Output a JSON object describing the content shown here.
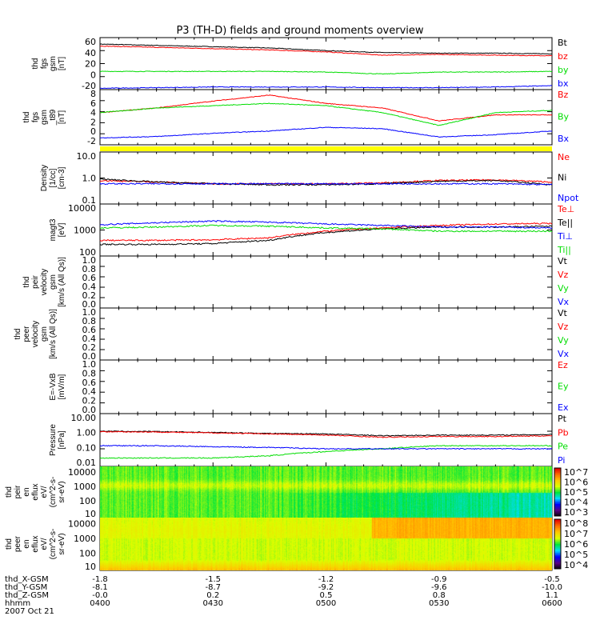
{
  "chart_data": {
    "type": "line",
    "title": "P3 (TH-D) fields and ground moments overview",
    "x_hours": [
      4.0,
      4.25,
      4.5,
      4.75,
      5.0,
      5.25,
      5.5,
      5.75,
      6.0
    ],
    "panels": [
      {
        "ylabel": [
          "thd",
          "fgs",
          "gsm",
          "[nT]"
        ],
        "scale": "linear",
        "ylim": [
          -20,
          60
        ],
        "yticks": [
          60,
          40,
          20,
          0,
          -20
        ],
        "series": [
          {
            "name": "Bt",
            "color": "#000000",
            "values": [
              50,
              48,
              46,
              44,
              40,
              37,
              36,
              36,
              35
            ]
          },
          {
            "name": "bz",
            "color": "#ff0000",
            "values": [
              47,
              45,
              43,
              41,
              38,
              33,
              34,
              33,
              32
            ]
          },
          {
            "name": "by",
            "color": "#00dd00",
            "values": [
              8,
              8,
              8,
              8,
              7,
              4,
              7,
              7,
              8
            ]
          },
          {
            "name": "bx",
            "color": "#0000ff",
            "values": [
              -18,
              -17,
              -16,
              -16,
              -16,
              -17,
              -17,
              -16,
              -14
            ]
          }
        ]
      },
      {
        "ylabel": [
          "thd",
          "fgs",
          "gsm",
          "_t89",
          "[nT]"
        ],
        "scale": "linear",
        "ylim": [
          -3,
          9
        ],
        "yticks": [
          8,
          6,
          4,
          2,
          0,
          -2
        ],
        "series": [
          {
            "name": "Bz",
            "color": "#ff0000",
            "values": [
              4,
              5,
              6.5,
              7.8,
              6,
              5,
              2.2,
              3.5,
              3.5
            ]
          },
          {
            "name": "By",
            "color": "#00dd00",
            "values": [
              4,
              5,
              5.5,
              6,
              5.5,
              4,
              1.2,
              4,
              4.5
            ]
          },
          {
            "name": "Bx",
            "color": "#0000ff",
            "values": [
              -1.5,
              -1.2,
              -0.5,
              0,
              0.8,
              0.5,
              -1.3,
              -0.8,
              0
            ]
          }
        ]
      },
      {
        "ylabel": [
          "Density",
          "[1/cc]",
          "[cm-3]"
        ],
        "scale": "log",
        "ylim": [
          0.1,
          10
        ],
        "yticks": [
          "10.0",
          "1.0",
          "0.1"
        ],
        "series": [
          {
            "name": "Ne",
            "color": "#ff0000",
            "values": [
              0.8,
              0.7,
              0.6,
              0.6,
              0.6,
              0.65,
              0.8,
              0.85,
              0.7
            ]
          },
          {
            "name": "Ni",
            "color": "#000000",
            "values": [
              0.9,
              0.7,
              0.6,
              0.55,
              0.55,
              0.6,
              0.75,
              0.8,
              0.55
            ]
          },
          {
            "name": "Npot",
            "color": "#0000ff",
            "values": [
              0.6,
              0.6,
              0.6,
              0.6,
              0.6,
              0.6,
              0.6,
              0.6,
              0.55
            ]
          }
        ]
      },
      {
        "ylabel": [
          "magt3",
          "[eV]"
        ],
        "scale": "log",
        "ylim": [
          100,
          10000
        ],
        "yticks": [
          "10000",
          "1000",
          "100"
        ],
        "series": [
          {
            "name": "Te⊥",
            "color": "#ff0000",
            "values": [
              400,
              400,
              420,
              500,
              900,
              1200,
              1500,
              1700,
              1800
            ]
          },
          {
            "name": "Te||",
            "color": "#000000",
            "values": [
              280,
              280,
              300,
              400,
              800,
              1100,
              1300,
              1300,
              1400
            ]
          },
          {
            "name": "Ti⊥",
            "color": "#0000ff",
            "values": [
              1600,
              1900,
              2200,
              2000,
              1700,
              1500,
              1300,
              1300,
              1200
            ]
          },
          {
            "name": "Ti||",
            "color": "#00dd00",
            "values": [
              1200,
              1300,
              1500,
              1400,
              1200,
              1100,
              900,
              900,
              900
            ]
          }
        ]
      },
      {
        "ylabel": [
          "thd",
          "peir",
          "velocity",
          "gsm",
          "[km/s (All Qs)]"
        ],
        "scale": "linear",
        "ylim": [
          0,
          1
        ],
        "yticks": [
          "1.0",
          "0.8",
          "0.6",
          "0.4",
          "0.2",
          "0.0"
        ],
        "series": [
          {
            "name": "Vt",
            "color": "#000000",
            "values": []
          },
          {
            "name": "Vz",
            "color": "#ff0000",
            "values": []
          },
          {
            "name": "Vy",
            "color": "#00dd00",
            "values": []
          },
          {
            "name": "Vx",
            "color": "#0000ff",
            "values": []
          }
        ]
      },
      {
        "ylabel": [
          "thd",
          "peer",
          "velocity",
          "gsm",
          "[km/s (All Qs)]"
        ],
        "scale": "linear",
        "ylim": [
          0,
          1
        ],
        "yticks": [
          "1.0",
          "0.8",
          "0.6",
          "0.4",
          "0.2",
          "0.0"
        ],
        "series": [
          {
            "name": "Vt",
            "color": "#000000",
            "values": []
          },
          {
            "name": "Vz",
            "color": "#ff0000",
            "values": []
          },
          {
            "name": "Vy",
            "color": "#00dd00",
            "values": []
          },
          {
            "name": "Vx",
            "color": "#0000ff",
            "values": []
          }
        ]
      },
      {
        "ylabel": [
          "E=-VxB",
          "[mV/m]"
        ],
        "scale": "linear",
        "ylim": [
          0,
          1
        ],
        "yticks": [
          "1.0",
          "0.8",
          "0.6",
          "0.4",
          "0.2",
          "0.0"
        ],
        "series": [
          {
            "name": "Ez",
            "color": "#ff0000",
            "values": []
          },
          {
            "name": "Ey",
            "color": "#00dd00",
            "values": []
          },
          {
            "name": "Ex",
            "color": "#0000ff",
            "values": []
          }
        ]
      },
      {
        "ylabel": [
          "Pressure",
          "[nPa]"
        ],
        "scale": "log",
        "ylim": [
          0.01,
          10
        ],
        "yticks": [
          "10.00",
          "1.00",
          "0.10",
          "0.01"
        ],
        "series": [
          {
            "name": "Pt",
            "color": "#000000",
            "values": [
              1.0,
              0.95,
              0.85,
              0.75,
              0.7,
              0.55,
              0.6,
              0.6,
              0.65
            ]
          },
          {
            "name": "Pb",
            "color": "#ff0000",
            "values": [
              0.95,
              0.9,
              0.8,
              0.7,
              0.6,
              0.45,
              0.5,
              0.5,
              0.55
            ]
          },
          {
            "name": "Pe",
            "color": "#00dd00",
            "values": [
              0.03,
              0.03,
              0.03,
              0.04,
              0.07,
              0.1,
              0.15,
              0.15,
              0.15
            ]
          },
          {
            "name": "Pi",
            "color": "#0000ff",
            "values": [
              0.15,
              0.15,
              0.13,
              0.12,
              0.1,
              0.1,
              0.1,
              0.1,
              0.1
            ]
          }
        ]
      }
    ],
    "spectrograms": [
      {
        "ylabel": [
          "thd",
          "peir",
          "en",
          "eflux",
          "eV/",
          "(cm^2-s-",
          "sr-eV)"
        ],
        "scale": "log",
        "ylim": [
          7,
          25000
        ],
        "yticks": [
          "10000",
          "1000",
          "100",
          "10"
        ],
        "colorbar_ticks": [
          "10^7",
          "10^6",
          "10^5",
          "10^4",
          "10^3"
        ],
        "zlim": [
          500,
          20000000
        ]
      },
      {
        "ylabel": [
          "thd",
          "peer",
          "en",
          "eflux",
          "eV/",
          "(cm^2-s-",
          "sr-eV)"
        ],
        "scale": "log",
        "ylim": [
          7,
          25000
        ],
        "yticks": [
          "10000",
          "1000",
          "100",
          "10"
        ],
        "colorbar_ticks": [
          "10^8",
          "10^7",
          "10^6",
          "10^5",
          "10^4"
        ],
        "zlim": [
          5000,
          300000000
        ]
      }
    ],
    "xaxis": {
      "rows": [
        {
          "label": "thd_X-GSM",
          "values": [
            "-1.8",
            "-1.5",
            "-1.2",
            "-0.9",
            "-0.5"
          ]
        },
        {
          "label": "thd_Y-GSM",
          "values": [
            "-8.1",
            "-8.7",
            "-9.2",
            "-9.6",
            "-10.0"
          ]
        },
        {
          "label": "thd_Z-GSM",
          "values": [
            "-0.0",
            "0.2",
            "0.5",
            "0.8",
            "1.1"
          ]
        },
        {
          "label": "hhmm",
          "values": [
            "0400",
            "0430",
            "0500",
            "0530",
            "0600"
          ]
        }
      ],
      "date": "2007 Oct 21"
    },
    "flag_bar_color": "#ffff00"
  }
}
